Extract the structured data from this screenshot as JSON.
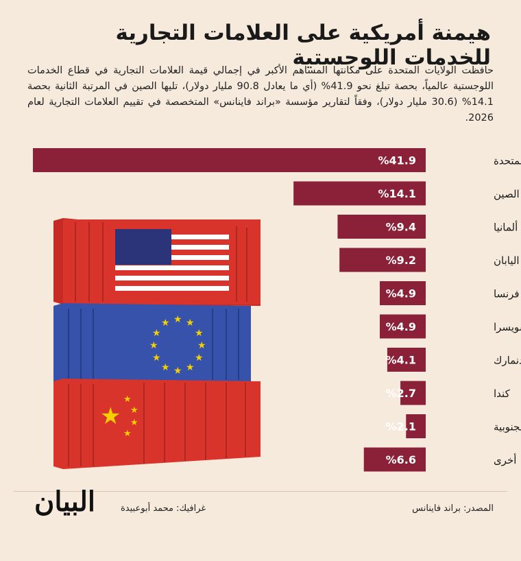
{
  "header": {
    "title": "هيمنة أمريكية على العلامات التجارية للخدمات اللوجستية",
    "intro": "حافظت الولايات المتحدة على مكانتها المساهم الأكبر في إجمالي قيمة العلامات التجارية في قطاع الخدمات اللوجستية عالمياً، بحصة تبلغ نحو 41.9% (أي ما يعادل 90.8 مليار دولار)، تليها الصين في المرتبة الثانية بحصة 14.1% (30.6 مليار دولار)، وفقاً لتقارير مؤسسة «براند فاينانس» المتخصصة في تقييم العلامات التجارية لعام 2026."
  },
  "chart_data": {
    "type": "bar",
    "orientation": "horizontal",
    "categories": [
      "الولايات المتحدة",
      "الصين",
      "ألمانيا",
      "اليابان",
      "فرنسا",
      "سويسرا",
      "الدنمارك",
      "كندا",
      "كوريا الجنوبية",
      "أخرى"
    ],
    "values": [
      41.9,
      14.1,
      9.4,
      9.2,
      4.9,
      4.9,
      4.1,
      2.7,
      2.1,
      6.6
    ],
    "value_labels": [
      "%41.9",
      "%14.1",
      "%9.4",
      "%9.2",
      "%4.9",
      "%4.9",
      "%4.1",
      "%2.7",
      "%2.1",
      "%6.6"
    ],
    "bar_color": "#8a2139",
    "title": "",
    "xlabel": "",
    "ylabel": "",
    "grid": false,
    "legend": "none"
  },
  "illustration": {
    "top_container": "us-flag",
    "middle_container": "eu-flag",
    "bottom_container": "china-flag",
    "colors": {
      "red": "#d8342b",
      "blue": "#2f4aa0",
      "gold": "#f5d000",
      "white": "#ffffff",
      "navy": "#2c3479"
    }
  },
  "footer": {
    "source": "المصدر: براند فاينانس",
    "credit": "غرافيك: محمد أبوعبيدة",
    "logo": "البيان"
  }
}
